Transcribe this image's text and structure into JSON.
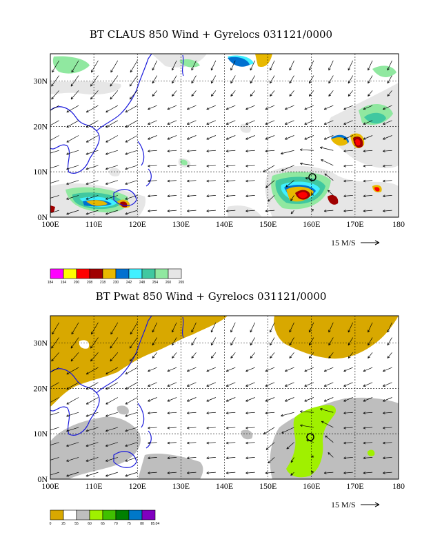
{
  "panels": [
    {
      "title": "BT CLAUS 850 Wind + Gyrelocs 031121/0000",
      "wind_ref_label": "15 M/S",
      "colorbar": {
        "ticks": [
          "184",
          "194",
          "200",
          "208",
          "218",
          "230",
          "242",
          "248",
          "254",
          "260",
          "265"
        ],
        "colors": [
          "#ff00ff",
          "#ffff00",
          "#ff0000",
          "#a00000",
          "#e8b800",
          "#0070d0",
          "#40f0ff",
          "#40c8a0",
          "#90e8a0",
          "#e6e6e6"
        ]
      }
    },
    {
      "title": "BT Pwat 850 Wind + Gyrelocs 031121/0000",
      "wind_ref_label": "15 M/S",
      "colorbar": {
        "ticks": [
          "0",
          "25",
          "55",
          "60",
          "65",
          "70",
          "75",
          "80",
          "85.04"
        ],
        "colors": [
          "#d8a800",
          "#ffffff",
          "#bebebe",
          "#a0f000",
          "#40c000",
          "#008000",
          "#0078c8",
          "#8000c0"
        ]
      }
    }
  ],
  "chart_data": [
    {
      "type": "heatmap",
      "title": "BT CLAUS 850 Wind + Gyrelocs 031121/0000",
      "x_ticks": [
        "100E",
        "110E",
        "120E",
        "130E",
        "140E",
        "150E",
        "160E",
        "170E",
        "180"
      ],
      "y_ticks": [
        "0N",
        "10N",
        "20N",
        "30N"
      ],
      "xlim": [
        100,
        180
      ],
      "ylim": [
        0,
        36
      ],
      "grid": true,
      "gyre_center": {
        "lon": 159,
        "lat": 8.5
      },
      "field_regions": [
        {
          "lon": 102,
          "lat": 32,
          "level": 9
        },
        {
          "lon": 119,
          "lat": 3,
          "level": 4
        },
        {
          "lon": 112,
          "lat": 4,
          "level": 5
        },
        {
          "lon": 160,
          "lat": 5,
          "level": 3
        },
        {
          "lon": 172,
          "lat": 16,
          "level": 3
        },
        {
          "lon": 176,
          "lat": 6,
          "level": 3
        },
        {
          "lon": 148,
          "lat": 34,
          "level": 5
        }
      ]
    },
    {
      "type": "heatmap",
      "title": "BT Pwat 850 Wind + Gyrelocs 031121/0000",
      "x_ticks": [
        "100E",
        "110E",
        "120E",
        "130E",
        "140E",
        "150E",
        "160E",
        "170E",
        "180"
      ],
      "y_ticks": [
        "0N",
        "10N",
        "20N",
        "30N"
      ],
      "xlim": [
        100,
        180
      ],
      "ylim": [
        0,
        36
      ],
      "grid": true,
      "gyre_center": {
        "lon": 159,
        "lat": 9
      }
    }
  ]
}
